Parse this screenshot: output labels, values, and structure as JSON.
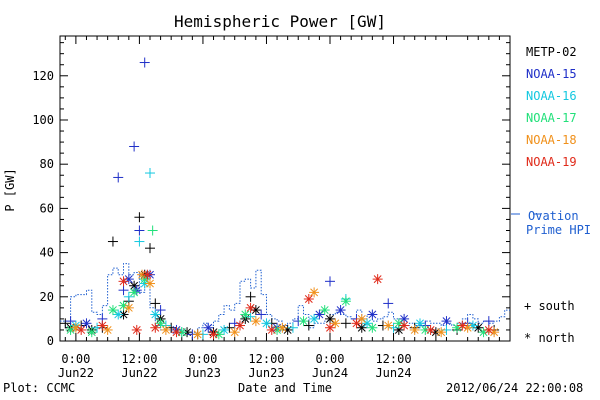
{
  "chart_data": {
    "type": "scatter",
    "title": "Hemispheric Power [GW]",
    "xlabel": "Date and Time",
    "ylabel": "P [GW]",
    "ylim": [
      0,
      138
    ],
    "yticks": [
      0,
      20,
      40,
      60,
      80,
      100,
      120
    ],
    "xlim_hours": [
      -3,
      82
    ],
    "xticks": [
      {
        "hour": 0,
        "time": "0:00",
        "day": "Jun22"
      },
      {
        "hour": 12,
        "time": "12:00",
        "day": "Jun22"
      },
      {
        "hour": 24,
        "time": "0:00",
        "day": "Jun23"
      },
      {
        "hour": 36,
        "time": "12:00",
        "day": "Jun23"
      },
      {
        "hour": 48,
        "time": "0:00",
        "day": "Jun24"
      },
      {
        "hour": 60,
        "time": "12:00",
        "day": "Jun24"
      }
    ],
    "legend_placement": "right",
    "series": [
      {
        "name": "METP-02",
        "color": "#000000",
        "values": [
          [
            -2,
            8,
            "+"
          ],
          [
            -1,
            6,
            "*"
          ],
          [
            1,
            7,
            "+"
          ],
          [
            3,
            5,
            "*"
          ],
          [
            5,
            6,
            "+"
          ],
          [
            7,
            45,
            "+"
          ],
          [
            9,
            12,
            "*"
          ],
          [
            10,
            18,
            "+"
          ],
          [
            11,
            25,
            "*"
          ],
          [
            12,
            56,
            "+"
          ],
          [
            13,
            30,
            "*"
          ],
          [
            14,
            42,
            "+"
          ],
          [
            15,
            17,
            "+"
          ],
          [
            16,
            10,
            "*"
          ],
          [
            18,
            6,
            "+"
          ],
          [
            21,
            4,
            "*"
          ],
          [
            23,
            3,
            "+"
          ],
          [
            26,
            4,
            "*"
          ],
          [
            29,
            6,
            "+"
          ],
          [
            32,
            10,
            "*"
          ],
          [
            33,
            20,
            "+"
          ],
          [
            34,
            14,
            "*"
          ],
          [
            37,
            8,
            "+"
          ],
          [
            40,
            5,
            "*"
          ],
          [
            44,
            7,
            "+"
          ],
          [
            48,
            10,
            "*"
          ],
          [
            51,
            8,
            "+"
          ],
          [
            54,
            6,
            "*"
          ],
          [
            58,
            7,
            "+"
          ],
          [
            61,
            5,
            "*"
          ],
          [
            64,
            6,
            "+"
          ],
          [
            68,
            4,
            "*"
          ],
          [
            72,
            5,
            "+"
          ],
          [
            76,
            6,
            "*"
          ],
          [
            79,
            5,
            "+"
          ]
        ]
      },
      {
        "name": "NOAA-15",
        "color": "#1f2fc8",
        "values": [
          [
            -1,
            9,
            "+"
          ],
          [
            2,
            8,
            "*"
          ],
          [
            5,
            10,
            "+"
          ],
          [
            8,
            74,
            "+"
          ],
          [
            9,
            23,
            "+"
          ],
          [
            10,
            28,
            "*"
          ],
          [
            11,
            88,
            "+"
          ],
          [
            11.5,
            23,
            "*"
          ],
          [
            12,
            50,
            "+"
          ],
          [
            13,
            126,
            "+"
          ],
          [
            14,
            30,
            "*"
          ],
          [
            16,
            14,
            "+"
          ],
          [
            19,
            5,
            "*"
          ],
          [
            22,
            3,
            "+"
          ],
          [
            25,
            6,
            "*"
          ],
          [
            30,
            8,
            "+"
          ],
          [
            35,
            12,
            "+"
          ],
          [
            38,
            6,
            "*"
          ],
          [
            42,
            9,
            "+"
          ],
          [
            46,
            12,
            "*"
          ],
          [
            48,
            27,
            "+"
          ],
          [
            50,
            14,
            "*"
          ],
          [
            53,
            10,
            "+"
          ],
          [
            56,
            12,
            "*"
          ],
          [
            59,
            17,
            "+"
          ],
          [
            62,
            10,
            "*"
          ],
          [
            66,
            7,
            "+"
          ],
          [
            70,
            9,
            "*"
          ],
          [
            74,
            8,
            "+"
          ],
          [
            78,
            9,
            "+"
          ]
        ]
      },
      {
        "name": "NOAA-16",
        "color": "#13c8e0",
        "values": [
          [
            0,
            7,
            "*"
          ],
          [
            4,
            6,
            "+"
          ],
          [
            8,
            12,
            "*"
          ],
          [
            10,
            20,
            "+"
          ],
          [
            12,
            45,
            "+"
          ],
          [
            13,
            26,
            "*"
          ],
          [
            14,
            76,
            "+"
          ],
          [
            15,
            12,
            "*"
          ],
          [
            17,
            7,
            "+"
          ],
          [
            20,
            4,
            "*"
          ],
          [
            24,
            3,
            "+"
          ],
          [
            28,
            5,
            "*"
          ],
          [
            33,
            11,
            "+"
          ],
          [
            36,
            8,
            "*"
          ],
          [
            41,
            6,
            "+"
          ],
          [
            45,
            10,
            "*"
          ],
          [
            51,
            19,
            "+"
          ],
          [
            55,
            8,
            "*"
          ],
          [
            60,
            6,
            "+"
          ],
          [
            65,
            8,
            "*"
          ],
          [
            70,
            5,
            "+"
          ],
          [
            75,
            7,
            "*"
          ]
        ]
      },
      {
        "name": "NOAA-17",
        "color": "#22e07a",
        "values": [
          [
            -1,
            5,
            "*"
          ],
          [
            3,
            4,
            "*"
          ],
          [
            7,
            14,
            "*"
          ],
          [
            9,
            16,
            "*"
          ],
          [
            11,
            22,
            "*"
          ],
          [
            13,
            28,
            "*"
          ],
          [
            14.5,
            50,
            "+"
          ],
          [
            16,
            8,
            "*"
          ],
          [
            20,
            4,
            "*"
          ],
          [
            27,
            3,
            "*"
          ],
          [
            32,
            12,
            "*"
          ],
          [
            38,
            5,
            "*"
          ],
          [
            43,
            9,
            "*"
          ],
          [
            47,
            14,
            "*"
          ],
          [
            51,
            18,
            "*"
          ],
          [
            56,
            6,
            "*"
          ],
          [
            61,
            8,
            "*"
          ],
          [
            66,
            5,
            "*"
          ],
          [
            72,
            6,
            "*"
          ],
          [
            77,
            4,
            "*"
          ]
        ]
      },
      {
        "name": "NOAA-18",
        "color": "#f0901a",
        "values": [
          [
            0,
            6,
            "*"
          ],
          [
            6,
            5,
            "*"
          ],
          [
            10,
            15,
            "*"
          ],
          [
            12.5,
            30,
            "*"
          ],
          [
            14,
            26,
            "*"
          ],
          [
            17,
            5,
            "*"
          ],
          [
            23,
            3,
            "*"
          ],
          [
            30,
            4,
            "*"
          ],
          [
            34,
            9,
            "*"
          ],
          [
            39,
            6,
            "*"
          ],
          [
            45,
            22,
            "*"
          ],
          [
            49,
            8,
            "*"
          ],
          [
            54,
            10,
            "*"
          ],
          [
            59,
            7,
            "*"
          ],
          [
            64,
            5,
            "*"
          ],
          [
            69,
            4,
            "*"
          ],
          [
            74,
            6,
            "*"
          ],
          [
            79,
            4,
            "*"
          ]
        ]
      },
      {
        "name": "NOAA-19",
        "color": "#e02a1a",
        "values": [
          [
            1,
            5,
            "*"
          ],
          [
            5,
            7,
            "*"
          ],
          [
            9,
            27,
            "*"
          ],
          [
            11.5,
            5,
            "*"
          ],
          [
            13.5,
            30,
            "*"
          ],
          [
            15,
            6,
            "*"
          ],
          [
            19,
            4,
            "*"
          ],
          [
            26,
            3,
            "*"
          ],
          [
            31,
            7,
            "*"
          ],
          [
            33,
            15,
            "*"
          ],
          [
            37,
            5,
            "*"
          ],
          [
            44,
            19,
            "*"
          ],
          [
            48,
            6,
            "*"
          ],
          [
            53,
            8,
            "*"
          ],
          [
            57,
            28,
            "*"
          ],
          [
            62,
            7,
            "*"
          ],
          [
            67,
            5,
            "*"
          ],
          [
            73,
            7,
            "*"
          ],
          [
            78,
            5,
            "*"
          ]
        ]
      }
    ],
    "ovation": {
      "name": "Ovation Prime HPI",
      "legend_line1": "Ovation",
      "legend_line2": "Prime HPI",
      "color": "#1f5fd0",
      "values": [
        [
          -3,
          9
        ],
        [
          -2,
          6
        ],
        [
          -1,
          20
        ],
        [
          0,
          21
        ],
        [
          1,
          21
        ],
        [
          2,
          23
        ],
        [
          3,
          13
        ],
        [
          4,
          12
        ],
        [
          5,
          16
        ],
        [
          6,
          30
        ],
        [
          7,
          33
        ],
        [
          8,
          30
        ],
        [
          9,
          35
        ],
        [
          10,
          30
        ],
        [
          11,
          31
        ],
        [
          12,
          22
        ],
        [
          13,
          28
        ],
        [
          14,
          15
        ],
        [
          15,
          7
        ],
        [
          16,
          5
        ],
        [
          17,
          5
        ],
        [
          18,
          4
        ],
        [
          19,
          5
        ],
        [
          20,
          4
        ],
        [
          21,
          3
        ],
        [
          22,
          4
        ],
        [
          23,
          6
        ],
        [
          24,
          8
        ],
        [
          25,
          7
        ],
        [
          26,
          9
        ],
        [
          27,
          12
        ],
        [
          28,
          16
        ],
        [
          29,
          14
        ],
        [
          30,
          17
        ],
        [
          31,
          27
        ],
        [
          32,
          28
        ],
        [
          33,
          24
        ],
        [
          34,
          32
        ],
        [
          35,
          21
        ],
        [
          36,
          12
        ],
        [
          37,
          10
        ],
        [
          38,
          9
        ],
        [
          39,
          7
        ],
        [
          40,
          8
        ],
        [
          41,
          10
        ],
        [
          42,
          16
        ],
        [
          43,
          12
        ],
        [
          44,
          6
        ],
        [
          45,
          8
        ],
        [
          46,
          8
        ],
        [
          47,
          9
        ],
        [
          48,
          12
        ],
        [
          49,
          13
        ],
        [
          50,
          12
        ],
        [
          51,
          11
        ],
        [
          52,
          10
        ],
        [
          53,
          14
        ],
        [
          54,
          10
        ],
        [
          55,
          12
        ],
        [
          56,
          9
        ],
        [
          57,
          10
        ],
        [
          58,
          11
        ],
        [
          59,
          13
        ],
        [
          60,
          10
        ],
        [
          61,
          8
        ],
        [
          62,
          7
        ],
        [
          63,
          8
        ],
        [
          64,
          7
        ],
        [
          65,
          8
        ],
        [
          66,
          9
        ],
        [
          67,
          8
        ],
        [
          68,
          8
        ],
        [
          69,
          7
        ],
        [
          70,
          8
        ],
        [
          71,
          7
        ],
        [
          72,
          8
        ],
        [
          73,
          10
        ],
        [
          74,
          12
        ],
        [
          75,
          10
        ],
        [
          76,
          8
        ],
        [
          77,
          9
        ],
        [
          78,
          8
        ],
        [
          79,
          9
        ],
        [
          80,
          11
        ],
        [
          81,
          14
        ]
      ]
    },
    "markers_legend": {
      "south": "+ south",
      "north": "* north"
    }
  },
  "footer": {
    "left": "Plot: CCMC",
    "timestamp": "2012/06/24 22:00:08"
  }
}
